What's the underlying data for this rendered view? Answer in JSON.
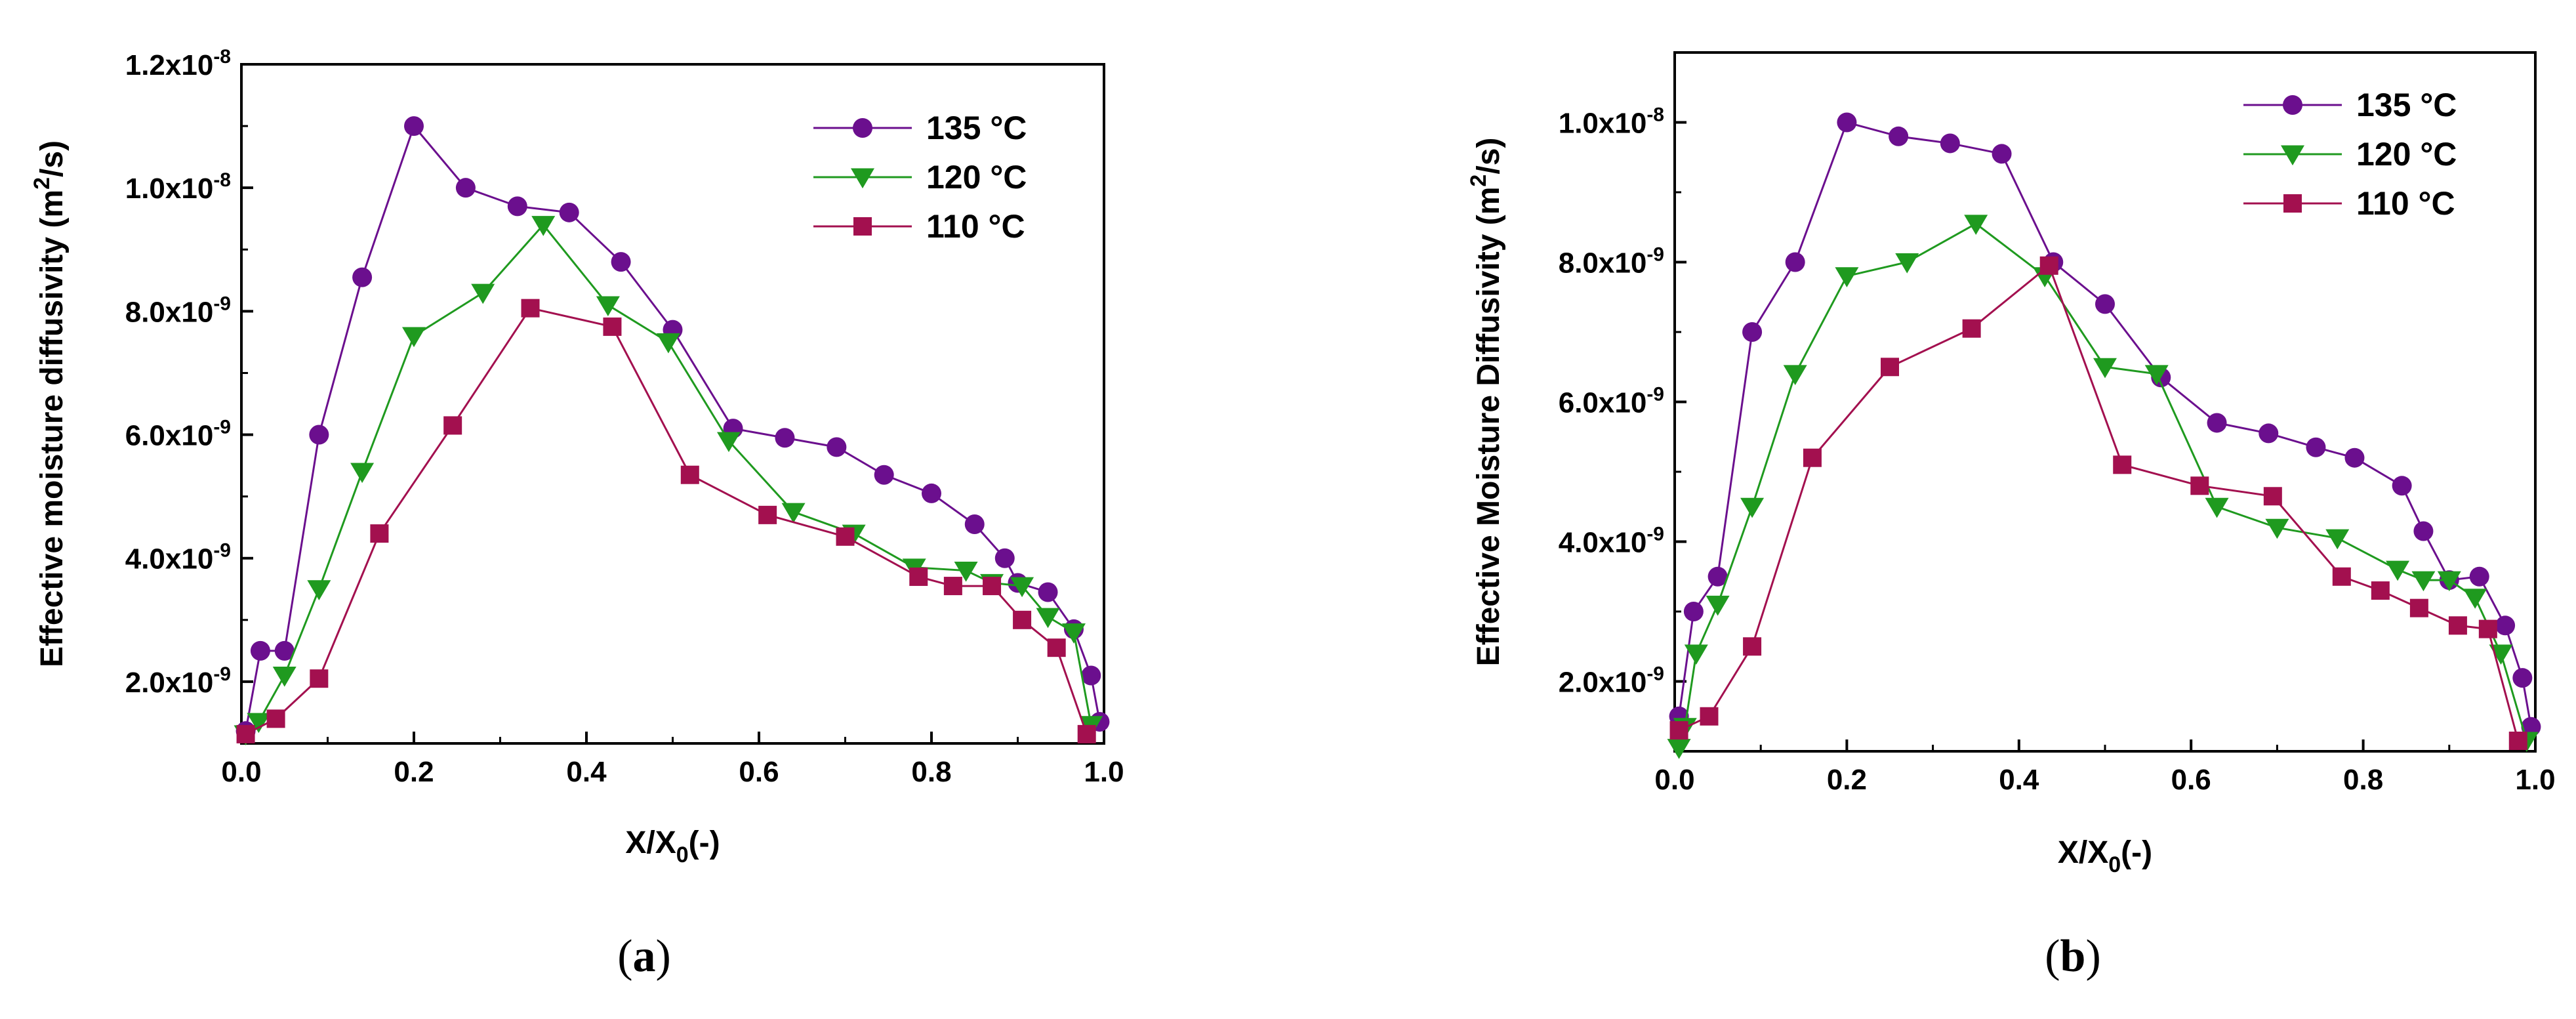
{
  "colors": {
    "t135": "#6B0F8E",
    "t120": "#1F9A1F",
    "t110": "#A3104F"
  },
  "panel_labels": [
    {
      "open": "(",
      "letter": "a",
      "close": ")"
    },
    {
      "open": "(",
      "letter": "b",
      "close": ")"
    }
  ],
  "chart_data": [
    {
      "type": "line",
      "panel": "a",
      "title": "",
      "xlabel": {
        "main": "X/X",
        "sub": "0",
        "tail": "(-)"
      },
      "ylabel": {
        "main": "Effective moisture diffusivity (m",
        "sup": "2",
        "tail": "/s)"
      },
      "xlim": [
        0.0,
        1.0
      ],
      "ylim": [
        1e-09,
        1.2e-08
      ],
      "x_ticks": [
        {
          "value": 0.0,
          "label": "0.0"
        },
        {
          "value": 0.2,
          "label": "0.2"
        },
        {
          "value": 0.4,
          "label": "0.4"
        },
        {
          "value": 0.6,
          "label": "0.6"
        },
        {
          "value": 0.8,
          "label": "0.8"
        },
        {
          "value": 1.0,
          "label": "1.0"
        }
      ],
      "y_ticks": [
        {
          "value": 2e-09,
          "label": "2.0x10",
          "exp": "-9"
        },
        {
          "value": 4e-09,
          "label": "4.0x10",
          "exp": "-9"
        },
        {
          "value": 6e-09,
          "label": "6.0x10",
          "exp": "-9"
        },
        {
          "value": 8e-09,
          "label": "8.0x10",
          "exp": "-9"
        },
        {
          "value": 1e-08,
          "label": "1.0x10",
          "exp": "-8"
        },
        {
          "value": 1.2e-08,
          "label": "1.2x10",
          "exp": "-8"
        }
      ],
      "legend_position": "top-right",
      "series": [
        {
          "name": "135 °C",
          "color_key": "t135",
          "marker": "circle",
          "points": [
            [
              0.005,
              1.2e-09
            ],
            [
              0.022,
              2.5e-09
            ],
            [
              0.05,
              2.5e-09
            ],
            [
              0.09,
              6e-09
            ],
            [
              0.14,
              8.55e-09
            ],
            [
              0.2,
              1.1e-08
            ],
            [
              0.26,
              1e-08
            ],
            [
              0.32,
              9.7e-09
            ],
            [
              0.38,
              9.6e-09
            ],
            [
              0.44,
              8.8e-09
            ],
            [
              0.5,
              7.7e-09
            ],
            [
              0.57,
              6.1e-09
            ],
            [
              0.63,
              5.95e-09
            ],
            [
              0.69,
              5.8e-09
            ],
            [
              0.745,
              5.35e-09
            ],
            [
              0.8,
              5.05e-09
            ],
            [
              0.85,
              4.55e-09
            ],
            [
              0.885,
              4e-09
            ],
            [
              0.9,
              3.6e-09
            ],
            [
              0.935,
              3.45e-09
            ],
            [
              0.965,
              2.85e-09
            ],
            [
              0.985,
              2.1e-09
            ],
            [
              0.995,
              1.35e-09
            ]
          ]
        },
        {
          "name": "120 °C",
          "color_key": "t120",
          "marker": "triangle-down",
          "points": [
            [
              0.005,
              1.15e-09
            ],
            [
              0.02,
              1.35e-09
            ],
            [
              0.05,
              2.1e-09
            ],
            [
              0.09,
              3.5e-09
            ],
            [
              0.14,
              5.4e-09
            ],
            [
              0.2,
              7.6e-09
            ],
            [
              0.28,
              8.3e-09
            ],
            [
              0.35,
              9.4e-09
            ],
            [
              0.425,
              8.1e-09
            ],
            [
              0.495,
              7.5e-09
            ],
            [
              0.565,
              5.9e-09
            ],
            [
              0.64,
              4.75e-09
            ],
            [
              0.71,
              4.4e-09
            ],
            [
              0.78,
              3.85e-09
            ],
            [
              0.84,
              3.8e-09
            ],
            [
              0.87,
              3.6e-09
            ],
            [
              0.905,
              3.55e-09
            ],
            [
              0.935,
              3.05e-09
            ],
            [
              0.965,
              2.8e-09
            ],
            [
              0.985,
              1.3e-09
            ]
          ]
        },
        {
          "name": "110 °C",
          "color_key": "t110",
          "marker": "square",
          "points": [
            [
              0.005,
              1.15e-09
            ],
            [
              0.04,
              1.4e-09
            ],
            [
              0.09,
              2.05e-09
            ],
            [
              0.16,
              4.4e-09
            ],
            [
              0.245,
              6.15e-09
            ],
            [
              0.335,
              8.05e-09
            ],
            [
              0.43,
              7.75e-09
            ],
            [
              0.52,
              5.35e-09
            ],
            [
              0.61,
              4.7e-09
            ],
            [
              0.7,
              4.35e-09
            ],
            [
              0.785,
              3.7e-09
            ],
            [
              0.825,
              3.55e-09
            ],
            [
              0.87,
              3.55e-09
            ],
            [
              0.905,
              3e-09
            ],
            [
              0.945,
              2.55e-09
            ],
            [
              0.98,
              1.15e-09
            ]
          ]
        }
      ]
    },
    {
      "type": "line",
      "panel": "b",
      "title": "",
      "xlabel": {
        "main": "X/X",
        "sub": "0",
        "tail": "(-)"
      },
      "ylabel": {
        "main": "Effective Moisture Diffusivity (m",
        "sup": "2",
        "tail": "/s)"
      },
      "xlim": [
        0.0,
        1.0
      ],
      "ylim": [
        1e-09,
        1.1e-08
      ],
      "x_ticks": [
        {
          "value": 0.0,
          "label": "0.0"
        },
        {
          "value": 0.2,
          "label": "0.2"
        },
        {
          "value": 0.4,
          "label": "0.4"
        },
        {
          "value": 0.6,
          "label": "0.6"
        },
        {
          "value": 0.8,
          "label": "0.8"
        },
        {
          "value": 1.0,
          "label": "1.0"
        }
      ],
      "y_ticks": [
        {
          "value": 2e-09,
          "label": "2.0x10",
          "exp": "-9"
        },
        {
          "value": 4e-09,
          "label": "4.0x10",
          "exp": "-9"
        },
        {
          "value": 6e-09,
          "label": "6.0x10",
          "exp": "-9"
        },
        {
          "value": 8e-09,
          "label": "8.0x10",
          "exp": "-9"
        },
        {
          "value": 1e-08,
          "label": "1.0x10",
          "exp": "-8"
        }
      ],
      "legend_position": "top-right",
      "series": [
        {
          "name": "135 °C",
          "color_key": "t135",
          "marker": "circle",
          "points": [
            [
              0.005,
              1.5e-09
            ],
            [
              0.022,
              3e-09
            ],
            [
              0.05,
              3.5e-09
            ],
            [
              0.09,
              7e-09
            ],
            [
              0.14,
              8e-09
            ],
            [
              0.2,
              1e-08
            ],
            [
              0.26,
              9.8e-09
            ],
            [
              0.32,
              9.7e-09
            ],
            [
              0.38,
              9.55e-09
            ],
            [
              0.44,
              8e-09
            ],
            [
              0.5,
              7.4e-09
            ],
            [
              0.565,
              6.35e-09
            ],
            [
              0.63,
              5.7e-09
            ],
            [
              0.69,
              5.55e-09
            ],
            [
              0.745,
              5.35e-09
            ],
            [
              0.79,
              5.2e-09
            ],
            [
              0.845,
              4.8e-09
            ],
            [
              0.87,
              4.15e-09
            ],
            [
              0.9,
              3.45e-09
            ],
            [
              0.935,
              3.5e-09
            ],
            [
              0.965,
              2.8e-09
            ],
            [
              0.985,
              2.05e-09
            ],
            [
              0.995,
              1.35e-09
            ]
          ]
        },
        {
          "name": "120 °C",
          "color_key": "t120",
          "marker": "triangle-down",
          "points": [
            [
              0.005,
              1.05e-09
            ],
            [
              0.012,
              1.35e-09
            ],
            [
              0.025,
              2.4e-09
            ],
            [
              0.05,
              3.1e-09
            ],
            [
              0.09,
              4.5e-09
            ],
            [
              0.14,
              6.4e-09
            ],
            [
              0.2,
              7.8e-09
            ],
            [
              0.27,
              8e-09
            ],
            [
              0.35,
              8.55e-09
            ],
            [
              0.43,
              7.8e-09
            ],
            [
              0.5,
              6.5e-09
            ],
            [
              0.56,
              6.4e-09
            ],
            [
              0.63,
              4.5e-09
            ],
            [
              0.7,
              4.2e-09
            ],
            [
              0.77,
              4.05e-09
            ],
            [
              0.84,
              3.6e-09
            ],
            [
              0.87,
              3.45e-09
            ],
            [
              0.9,
              3.45e-09
            ],
            [
              0.93,
              3.2e-09
            ],
            [
              0.96,
              2.4e-09
            ],
            [
              0.99,
              1.15e-09
            ]
          ]
        },
        {
          "name": "110 °C",
          "color_key": "t110",
          "marker": "square",
          "points": [
            [
              0.005,
              1.3e-09
            ],
            [
              0.04,
              1.5e-09
            ],
            [
              0.09,
              2.5e-09
            ],
            [
              0.16,
              5.2e-09
            ],
            [
              0.25,
              6.5e-09
            ],
            [
              0.345,
              7.05e-09
            ],
            [
              0.435,
              7.95e-09
            ],
            [
              0.52,
              5.1e-09
            ],
            [
              0.61,
              4.8e-09
            ],
            [
              0.695,
              4.65e-09
            ],
            [
              0.775,
              3.5e-09
            ],
            [
              0.82,
              3.3e-09
            ],
            [
              0.865,
              3.05e-09
            ],
            [
              0.91,
              2.8e-09
            ],
            [
              0.945,
              2.75e-09
            ],
            [
              0.98,
              1.15e-09
            ]
          ]
        }
      ]
    }
  ]
}
